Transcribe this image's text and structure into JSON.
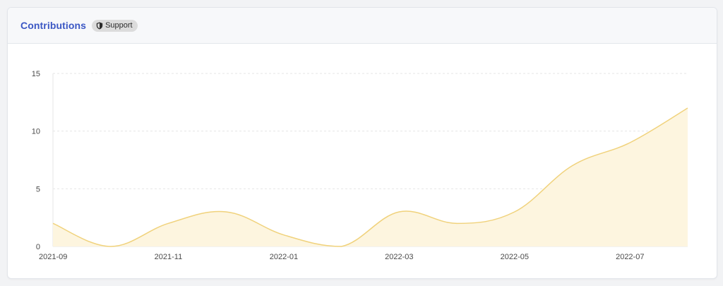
{
  "header": {
    "title": "Contributions",
    "badge_label": "Support",
    "badge_icon": "shield-icon"
  },
  "colors": {
    "title": "#3b57c4",
    "line": "#f0d27c",
    "fill": "#fdf5df",
    "grid": "#e6e6e6",
    "axis_text": "#4a4a4a"
  },
  "chart_data": {
    "type": "area",
    "title": "",
    "xlabel": "",
    "ylabel": "",
    "ylim": [
      0,
      15
    ],
    "yticks": [
      0,
      5,
      10,
      15
    ],
    "grid": true,
    "legend": "none",
    "x": [
      "2021-09",
      "2021-10",
      "2021-11",
      "2021-12",
      "2022-01",
      "2022-02",
      "2022-03",
      "2022-04",
      "2022-05",
      "2022-06",
      "2022-07",
      "2022-08"
    ],
    "xtick_labels": [
      "2021-09",
      "2021-11",
      "2022-01",
      "2022-03",
      "2022-05",
      "2022-07"
    ],
    "series": [
      {
        "values": [
          2,
          0,
          2,
          3,
          1,
          0,
          3,
          2,
          3,
          7,
          9,
          12
        ]
      }
    ]
  }
}
